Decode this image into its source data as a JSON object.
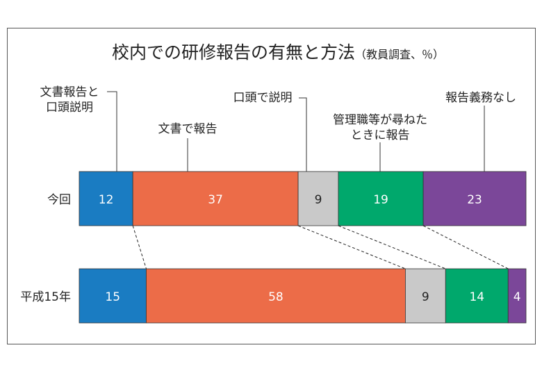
{
  "chart_data": {
    "type": "bar",
    "orientation": "horizontal-stacked-100",
    "title": "校内での研修報告の有無と方法",
    "subtitle": "（教員調査、％）",
    "categories": [
      "今回",
      "平成15年"
    ],
    "series": [
      {
        "name": "文書報告と口頭説明",
        "label_lines": [
          "文書報告と",
          "口頭説明"
        ],
        "color": "#1a7cc2",
        "values": [
          12,
          15
        ]
      },
      {
        "name": "文書で報告",
        "label_lines": [
          "文書で報告"
        ],
        "color": "#ec6c48",
        "values": [
          37,
          58
        ]
      },
      {
        "name": "口頭で説明",
        "label_lines": [
          "口頭で説明"
        ],
        "color": "#c9c9c9",
        "values": [
          9,
          9
        ]
      },
      {
        "name": "管理職等が尋ねたときに報告",
        "label_lines": [
          "管理職等が尋ねた",
          "ときに報告"
        ],
        "color": "#00a86c",
        "values": [
          19,
          14
        ]
      },
      {
        "name": "報告義務なし",
        "label_lines": [
          "報告義務なし"
        ],
        "color": "#7b4799",
        "values": [
          23,
          4
        ]
      }
    ],
    "xlim": [
      0,
      100
    ],
    "grid": false
  }
}
